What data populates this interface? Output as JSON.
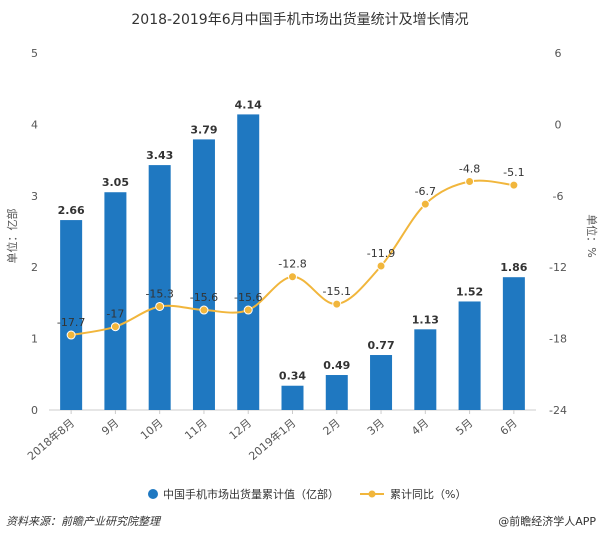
{
  "chart_data": {
    "type": "bar+line",
    "title": "2018-2019年6月中国手机市场出货量统计及增长情况",
    "categories": [
      "2018年8月",
      "9月",
      "10月",
      "11月",
      "12月",
      "2019年1月",
      "2月",
      "3月",
      "4月",
      "5月",
      "6月"
    ],
    "series": [
      {
        "name": "中国手机市场出货量累计值（亿部）",
        "type": "bar",
        "axis": "left",
        "color": "#1f78c1",
        "values": [
          2.66,
          3.05,
          3.43,
          3.79,
          4.14,
          0.34,
          0.49,
          0.77,
          1.13,
          1.52,
          1.86
        ]
      },
      {
        "name": "累计同比（%）",
        "type": "line",
        "axis": "right",
        "color": "#f1b63c",
        "values": [
          -17.7,
          -17,
          -15.3,
          -15.6,
          -15.6,
          -12.8,
          -15.1,
          -11.9,
          -6.7,
          -4.8,
          -5.1
        ]
      }
    ],
    "y_left": {
      "label": "单位：亿部",
      "min": 0,
      "max": 5,
      "ticks": [
        0,
        1,
        2,
        3,
        4,
        5
      ]
    },
    "y_right": {
      "label": "单位：%",
      "min": -24,
      "max": 6,
      "ticks": [
        -24,
        -18,
        -12,
        -6,
        0,
        6
      ]
    },
    "grid": false,
    "legend_position": "bottom"
  },
  "footer": {
    "source": "资料来源：前瞻产业研究院整理",
    "brand": "@前瞻经济学人APP"
  }
}
